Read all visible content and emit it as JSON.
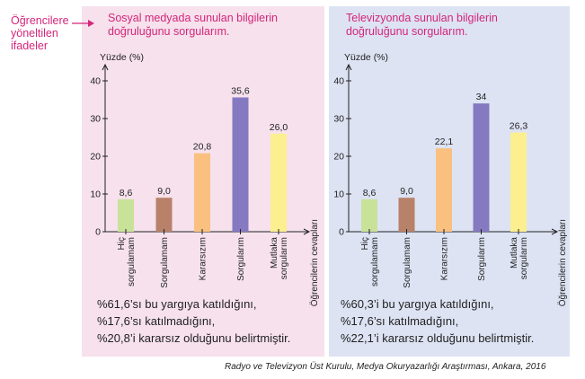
{
  "annotation": {
    "lines": [
      "Öğrencilere",
      "yöneltilen",
      "ifadeler"
    ],
    "color": "#d4267a"
  },
  "colors": {
    "left_panel_bg": "#f6e1ec",
    "right_panel_bg": "#dde3f3",
    "axis": "#222222",
    "title": "#d4267a"
  },
  "chart_data": [
    {
      "type": "bar",
      "title_lines": [
        "Sosyal medyada sunulan bilgilerin",
        "doğruluğunu sorgularım."
      ],
      "ylabel": "Yüzde (%)",
      "xlabel": "Öğrencilerin cevapları",
      "categories": [
        [
          "Hiç",
          "sorgulamam"
        ],
        [
          "Sorgulamam"
        ],
        [
          "Kararsızım"
        ],
        [
          "Sorgularım"
        ],
        [
          "Mutlaka",
          "sorgularım"
        ]
      ],
      "values": [
        8.6,
        9.0,
        20.8,
        35.6,
        26.0
      ],
      "value_labels": [
        "8,6",
        "9,0",
        "20,8",
        "35,6",
        "26,0"
      ],
      "bar_colors": [
        "#c9e29a",
        "#b8826a",
        "#f9c07f",
        "#8579c1",
        "#fbef8f"
      ],
      "yticks": [
        0,
        10,
        20,
        30,
        40
      ],
      "ylim": [
        0,
        40
      ],
      "grid": false,
      "stats": [
        "%61,6’sı bu yargıya katıldığını,",
        "%17,6’sı katılmadığını,",
        "%20,8’i kararsız olduğunu belirtmiştir."
      ]
    },
    {
      "type": "bar",
      "title_lines": [
        "Televizyonda sunulan bilgilerin",
        "doğruluğunu sorgularım."
      ],
      "ylabel": "Yüzde (%)",
      "xlabel": "Öğrencilerin cevapları",
      "categories": [
        [
          "Hiç",
          "sorgulamam"
        ],
        [
          "Sorgulamam"
        ],
        [
          "Kararsızım"
        ],
        [
          "Sorgularım"
        ],
        [
          "Mutlaka",
          "sorgularım"
        ]
      ],
      "values": [
        8.6,
        9.0,
        22.1,
        34,
        26.3
      ],
      "value_labels": [
        "8,6",
        "9,0",
        "22,1",
        "34",
        "26,3"
      ],
      "bar_colors": [
        "#c9e29a",
        "#b8826a",
        "#f9c07f",
        "#8579c1",
        "#fbef8f"
      ],
      "yticks": [
        0,
        10,
        20,
        30,
        40
      ],
      "ylim": [
        0,
        40
      ],
      "grid": false,
      "stats": [
        "%60,3’i bu yargıya katıldığını,",
        "%17,6’sı katılmadığını,",
        "%22,1’i kararsız olduğunu belirtmiştir."
      ]
    }
  ],
  "source": "Radyo ve Televizyon Üst Kurulu, Medya Okuryazarlığı Araştırması, Ankara, 2016"
}
